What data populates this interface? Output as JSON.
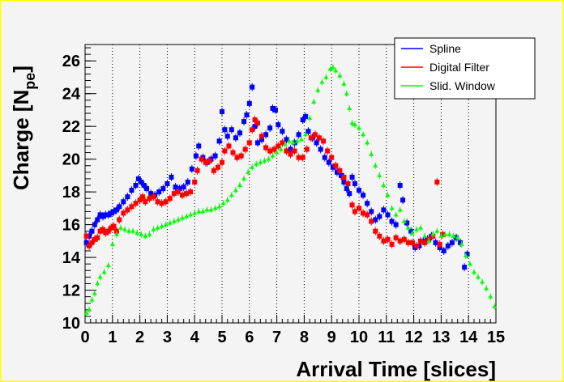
{
  "chart_data": {
    "type": "scatter",
    "xlabel": "Arrival Time [slices]",
    "ylabel": "Charge [N",
    "ylabel_sub": "pe",
    "ylabel_close": "]",
    "xlim": [
      0,
      15
    ],
    "ylim": [
      10,
      27
    ],
    "x_ticks": [
      "0",
      "1",
      "2",
      "3",
      "4",
      "5",
      "6",
      "7",
      "8",
      "9",
      "10",
      "11",
      "12",
      "13",
      "14",
      "15"
    ],
    "y_ticks": [
      "10",
      "12",
      "14",
      "16",
      "18",
      "20",
      "22",
      "24",
      "26"
    ],
    "grid": "vertical-dotted",
    "legend_position": "top-right",
    "series": [
      {
        "name": "Spline",
        "color": "#0000ff",
        "points": [
          [
            0.05,
            14.9
          ],
          [
            0.15,
            15.3
          ],
          [
            0.25,
            15.6
          ],
          [
            0.35,
            16.0
          ],
          [
            0.45,
            16.3
          ],
          [
            0.55,
            16.6
          ],
          [
            0.65,
            16.5
          ],
          [
            0.75,
            16.6
          ],
          [
            0.85,
            16.6
          ],
          [
            0.95,
            16.7
          ],
          [
            1.05,
            16.8
          ],
          [
            1.15,
            16.9
          ],
          [
            1.25,
            17.1
          ],
          [
            1.4,
            17.4
          ],
          [
            1.55,
            17.7
          ],
          [
            1.7,
            18.1
          ],
          [
            1.85,
            18.4
          ],
          [
            1.95,
            18.8
          ],
          [
            2.05,
            18.6
          ],
          [
            2.15,
            18.4
          ],
          [
            2.25,
            18.2
          ],
          [
            2.4,
            17.9
          ],
          [
            2.55,
            17.8
          ],
          [
            2.7,
            18.0
          ],
          [
            2.85,
            18.2
          ],
          [
            3.0,
            18.5
          ],
          [
            3.15,
            18.9
          ],
          [
            3.3,
            18.3
          ],
          [
            3.45,
            18.2
          ],
          [
            3.6,
            18.3
          ],
          [
            3.75,
            18.6
          ],
          [
            3.9,
            19.4
          ],
          [
            4.05,
            20.2
          ],
          [
            4.15,
            20.8
          ],
          [
            4.3,
            20.1
          ],
          [
            4.45,
            19.8
          ],
          [
            4.6,
            20.0
          ],
          [
            4.75,
            20.2
          ],
          [
            4.9,
            21.1
          ],
          [
            5.0,
            22.9
          ],
          [
            5.1,
            21.8
          ],
          [
            5.2,
            21.4
          ],
          [
            5.35,
            21.8
          ],
          [
            5.5,
            21.3
          ],
          [
            5.65,
            21.6
          ],
          [
            5.8,
            22.3
          ],
          [
            5.9,
            22.7
          ],
          [
            6.0,
            23.4
          ],
          [
            6.1,
            24.4
          ],
          [
            6.2,
            22.0
          ],
          [
            6.3,
            21.0
          ],
          [
            6.45,
            21.2
          ],
          [
            6.6,
            21.5
          ],
          [
            6.75,
            21.9
          ],
          [
            6.85,
            23.1
          ],
          [
            6.95,
            23.0
          ],
          [
            7.05,
            22.1
          ],
          [
            7.2,
            21.7
          ],
          [
            7.35,
            21.2
          ],
          [
            7.5,
            20.6
          ],
          [
            7.65,
            21.0
          ],
          [
            7.8,
            21.5
          ],
          [
            7.95,
            22.4
          ],
          [
            8.05,
            22.6
          ],
          [
            8.15,
            21.7
          ],
          [
            8.3,
            21.3
          ],
          [
            8.45,
            21.0
          ],
          [
            8.6,
            20.6
          ],
          [
            8.75,
            20.1
          ],
          [
            8.9,
            19.8
          ],
          [
            9.05,
            19.5
          ],
          [
            9.2,
            19.2
          ],
          [
            9.35,
            19.0
          ],
          [
            9.45,
            18.6
          ],
          [
            9.55,
            18.2
          ],
          [
            9.65,
            17.9
          ],
          [
            9.75,
            18.9
          ],
          [
            9.85,
            18.5
          ],
          [
            10.0,
            18.1
          ],
          [
            10.15,
            17.8
          ],
          [
            10.3,
            17.3
          ],
          [
            10.45,
            16.8
          ],
          [
            10.6,
            16.3
          ],
          [
            10.75,
            16.5
          ],
          [
            10.9,
            16.9
          ],
          [
            11.05,
            16.6
          ],
          [
            11.2,
            16.2
          ],
          [
            11.35,
            16.0
          ],
          [
            11.5,
            18.4
          ],
          [
            11.6,
            17.5
          ],
          [
            11.75,
            16.1
          ],
          [
            11.9,
            15.6
          ],
          [
            12.05,
            14.6
          ],
          [
            12.2,
            14.7
          ],
          [
            12.35,
            15.0
          ],
          [
            12.5,
            15.1
          ],
          [
            12.65,
            15.3
          ],
          [
            12.8,
            14.9
          ],
          [
            12.95,
            14.6
          ],
          [
            13.1,
            14.4
          ],
          [
            13.25,
            14.7
          ],
          [
            13.4,
            14.9
          ],
          [
            13.55,
            15.2
          ],
          [
            13.7,
            14.9
          ],
          [
            13.85,
            13.4
          ],
          [
            13.95,
            14.2
          ]
        ]
      },
      {
        "name": "Digital Filter",
        "color": "#ff0000",
        "points": [
          [
            0.05,
            15.3
          ],
          [
            0.15,
            14.7
          ],
          [
            0.25,
            14.9
          ],
          [
            0.35,
            15.1
          ],
          [
            0.45,
            15.2
          ],
          [
            0.55,
            15.6
          ],
          [
            0.65,
            15.7
          ],
          [
            0.75,
            15.5
          ],
          [
            0.85,
            15.6
          ],
          [
            0.95,
            15.8
          ],
          [
            1.05,
            15.9
          ],
          [
            1.15,
            15.6
          ],
          [
            1.25,
            16.3
          ],
          [
            1.4,
            16.7
          ],
          [
            1.55,
            16.9
          ],
          [
            1.7,
            17.1
          ],
          [
            1.85,
            17.3
          ],
          [
            2.0,
            17.5
          ],
          [
            2.1,
            17.7
          ],
          [
            2.2,
            17.4
          ],
          [
            2.35,
            17.6
          ],
          [
            2.5,
            17.7
          ],
          [
            2.65,
            17.4
          ],
          [
            2.8,
            17.3
          ],
          [
            2.95,
            17.4
          ],
          [
            3.1,
            17.6
          ],
          [
            3.25,
            17.9
          ],
          [
            3.4,
            18.0
          ],
          [
            3.55,
            17.8
          ],
          [
            3.7,
            17.9
          ],
          [
            3.85,
            18.0
          ],
          [
            4.0,
            18.6
          ],
          [
            4.1,
            19.3
          ],
          [
            4.25,
            20.0
          ],
          [
            4.4,
            19.8
          ],
          [
            4.55,
            19.9
          ],
          [
            4.7,
            19.3
          ],
          [
            4.85,
            19.5
          ],
          [
            5.0,
            19.8
          ],
          [
            5.1,
            20.5
          ],
          [
            5.25,
            20.8
          ],
          [
            5.4,
            20.4
          ],
          [
            5.55,
            20.1
          ],
          [
            5.7,
            20.2
          ],
          [
            5.85,
            20.6
          ],
          [
            6.0,
            21.0
          ],
          [
            6.1,
            21.8
          ],
          [
            6.2,
            22.4
          ],
          [
            6.3,
            22.2
          ],
          [
            6.45,
            21.4
          ],
          [
            6.6,
            20.7
          ],
          [
            6.75,
            20.5
          ],
          [
            6.9,
            20.6
          ],
          [
            7.05,
            20.8
          ],
          [
            7.2,
            21.0
          ],
          [
            7.35,
            20.5
          ],
          [
            7.5,
            20.3
          ],
          [
            7.65,
            20.5
          ],
          [
            7.8,
            20.1
          ],
          [
            7.95,
            20.1
          ],
          [
            8.1,
            20.6
          ],
          [
            8.25,
            21.3
          ],
          [
            8.4,
            21.5
          ],
          [
            8.55,
            21.3
          ],
          [
            8.7,
            21.1
          ],
          [
            8.85,
            20.5
          ],
          [
            9.0,
            20.1
          ],
          [
            9.15,
            19.6
          ],
          [
            9.3,
            19.3
          ],
          [
            9.45,
            18.9
          ],
          [
            9.6,
            18.5
          ],
          [
            9.75,
            17.2
          ],
          [
            9.85,
            16.8
          ],
          [
            10.0,
            17.0
          ],
          [
            10.15,
            16.7
          ],
          [
            10.3,
            16.6
          ],
          [
            10.45,
            16.2
          ],
          [
            10.6,
            15.6
          ],
          [
            10.75,
            15.3
          ],
          [
            10.9,
            15.0
          ],
          [
            11.05,
            15.1
          ],
          [
            11.2,
            14.8
          ],
          [
            11.35,
            15.2
          ],
          [
            11.5,
            15.0
          ],
          [
            11.65,
            15.1
          ],
          [
            11.8,
            14.9
          ],
          [
            11.95,
            14.9
          ],
          [
            12.1,
            14.7
          ],
          [
            12.25,
            15.0
          ],
          [
            12.4,
            14.9
          ],
          [
            12.55,
            15.1
          ],
          [
            12.7,
            15.3
          ],
          [
            12.85,
            18.6
          ],
          [
            12.95,
            14.8
          ],
          [
            13.05,
            15.4
          ]
        ]
      },
      {
        "name": "Slid. Window",
        "color": "#00ff00",
        "points": [
          [
            0.05,
            10.6
          ],
          [
            0.15,
            10.8
          ],
          [
            0.25,
            11.4
          ],
          [
            0.35,
            11.8
          ],
          [
            0.45,
            12.4
          ],
          [
            0.55,
            12.8
          ],
          [
            0.7,
            13.1
          ],
          [
            0.85,
            13.5
          ],
          [
            1.0,
            14.8
          ],
          [
            1.15,
            15.4
          ],
          [
            1.3,
            15.8
          ],
          [
            1.45,
            15.7
          ],
          [
            1.6,
            15.6
          ],
          [
            1.75,
            15.6
          ],
          [
            1.9,
            15.5
          ],
          [
            2.05,
            15.4
          ],
          [
            2.2,
            15.3
          ],
          [
            2.35,
            15.4
          ],
          [
            2.5,
            15.7
          ],
          [
            2.65,
            15.8
          ],
          [
            2.8,
            15.9
          ],
          [
            2.95,
            16.0
          ],
          [
            3.1,
            16.1
          ],
          [
            3.25,
            16.2
          ],
          [
            3.4,
            16.3
          ],
          [
            3.55,
            16.4
          ],
          [
            3.7,
            16.5
          ],
          [
            3.85,
            16.6
          ],
          [
            4.0,
            16.7
          ],
          [
            4.15,
            16.8
          ],
          [
            4.3,
            16.8
          ],
          [
            4.45,
            16.9
          ],
          [
            4.6,
            16.9
          ],
          [
            4.75,
            17.0
          ],
          [
            4.9,
            17.1
          ],
          [
            5.05,
            17.3
          ],
          [
            5.2,
            17.5
          ],
          [
            5.35,
            17.8
          ],
          [
            5.5,
            18.1
          ],
          [
            5.65,
            18.4
          ],
          [
            5.8,
            18.8
          ],
          [
            5.95,
            19.2
          ],
          [
            6.1,
            19.5
          ],
          [
            6.25,
            19.7
          ],
          [
            6.4,
            19.8
          ],
          [
            6.55,
            19.9
          ],
          [
            6.7,
            20.0
          ],
          [
            6.85,
            20.2
          ],
          [
            7.0,
            20.4
          ],
          [
            7.15,
            20.6
          ],
          [
            7.3,
            20.9
          ],
          [
            7.45,
            21.1
          ],
          [
            7.6,
            21.0
          ],
          [
            7.75,
            21.1
          ],
          [
            7.9,
            21.2
          ],
          [
            8.05,
            21.5
          ],
          [
            8.2,
            22.5
          ],
          [
            8.35,
            23.5
          ],
          [
            8.5,
            24.2
          ],
          [
            8.65,
            24.7
          ],
          [
            8.8,
            25.0
          ],
          [
            8.95,
            25.5
          ],
          [
            9.05,
            25.6
          ],
          [
            9.15,
            25.4
          ],
          [
            9.3,
            25.1
          ],
          [
            9.45,
            24.6
          ],
          [
            9.55,
            24.0
          ],
          [
            9.65,
            23.1
          ],
          [
            9.75,
            22.2
          ],
          [
            9.85,
            22.1
          ],
          [
            10.0,
            21.9
          ],
          [
            10.15,
            21.5
          ],
          [
            10.3,
            21.0
          ],
          [
            10.45,
            20.3
          ],
          [
            10.6,
            19.6
          ],
          [
            10.75,
            19.0
          ],
          [
            10.9,
            18.4
          ],
          [
            11.05,
            17.8
          ],
          [
            11.2,
            17.0
          ],
          [
            11.35,
            16.6
          ],
          [
            11.5,
            16.9
          ],
          [
            11.65,
            16.2
          ],
          [
            11.8,
            15.8
          ],
          [
            11.95,
            15.5
          ],
          [
            12.1,
            15.7
          ],
          [
            12.25,
            15.8
          ],
          [
            12.4,
            15.3
          ],
          [
            12.55,
            15.0
          ],
          [
            12.7,
            15.4
          ],
          [
            12.85,
            15.6
          ],
          [
            13.0,
            15.3
          ],
          [
            13.15,
            15.4
          ],
          [
            13.3,
            15.4
          ],
          [
            13.45,
            15.3
          ],
          [
            13.6,
            15.2
          ],
          [
            13.75,
            14.8
          ],
          [
            13.9,
            14.1
          ],
          [
            14.05,
            13.6
          ],
          [
            14.2,
            13.1
          ],
          [
            14.35,
            12.8
          ],
          [
            14.5,
            12.5
          ],
          [
            14.65,
            12.1
          ],
          [
            14.8,
            11.6
          ],
          [
            14.95,
            11.0
          ]
        ]
      }
    ]
  }
}
